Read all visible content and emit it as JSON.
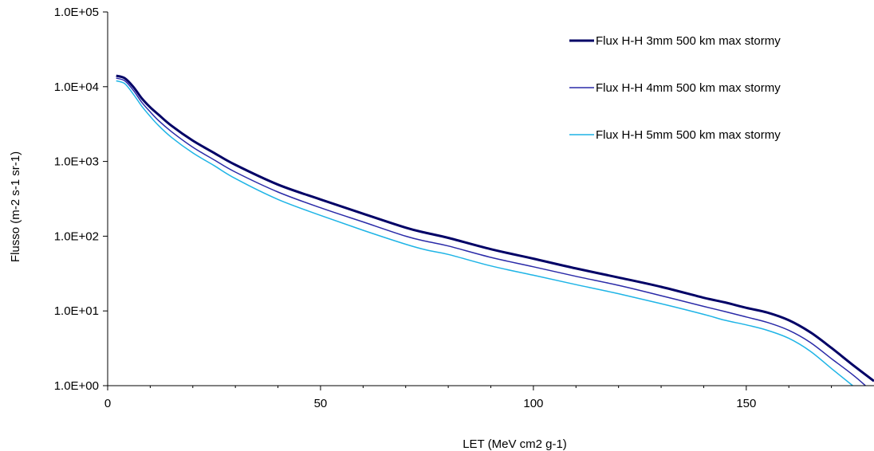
{
  "chart_data": {
    "type": "line",
    "title": "",
    "xlabel": "LET (MeV cm2 g-1)",
    "ylabel": "Flusso (m-2 s-1 sr-1)",
    "xlim": [
      0,
      180
    ],
    "ylim": [
      1,
      100000
    ],
    "yscale": "log",
    "grid": false,
    "legend_position": "top-right",
    "x_ticks": [
      {
        "value": 0,
        "label": "0"
      },
      {
        "value": 50,
        "label": "50"
      },
      {
        "value": 100,
        "label": "100"
      },
      {
        "value": 150,
        "label": "150"
      }
    ],
    "y_ticks": [
      {
        "value": 1,
        "label": "1.0E+00"
      },
      {
        "value": 10,
        "label": "1.0E+01"
      },
      {
        "value": 100,
        "label": "1.0E+02"
      },
      {
        "value": 1000,
        "label": "1.0E+03"
      },
      {
        "value": 10000,
        "label": "1.0E+04"
      },
      {
        "value": 100000,
        "label": "1.0E+05"
      }
    ],
    "series": [
      {
        "name": "Flux H-H 3mm 500 km max stormy",
        "color": "#000066",
        "x": [
          2,
          4,
          6,
          8,
          10,
          12,
          15,
          20,
          25,
          30,
          40,
          50,
          60,
          70,
          75,
          80,
          90,
          100,
          110,
          120,
          130,
          140,
          145,
          150,
          155,
          160,
          165,
          170,
          175,
          180
        ],
        "y": [
          14000,
          13000,
          10000,
          7000,
          5300,
          4200,
          3000,
          1900,
          1300,
          900,
          490,
          310,
          200,
          130,
          110,
          95,
          67,
          50,
          37,
          28,
          21,
          15,
          13,
          11,
          9.5,
          7.5,
          5.2,
          3.2,
          1.9,
          1.15
        ]
      },
      {
        "name": "Flux H-H 4mm 500 km max stormy",
        "color": "#2a2aa8",
        "x": [
          2,
          4,
          6,
          8,
          10,
          12,
          15,
          20,
          25,
          30,
          40,
          50,
          60,
          70,
          75,
          80,
          90,
          100,
          110,
          120,
          130,
          140,
          145,
          150,
          155,
          160,
          165,
          170,
          175,
          178
        ],
        "y": [
          13000,
          12000,
          9000,
          6200,
          4600,
          3500,
          2500,
          1550,
          1050,
          720,
          390,
          240,
          155,
          100,
          85,
          74,
          52,
          39,
          29,
          22,
          16,
          11.5,
          9.8,
          8.3,
          7,
          5.5,
          3.8,
          2.3,
          1.4,
          1
        ]
      },
      {
        "name": "Flux H-H 5mm 500 km max stormy",
        "color": "#1eb4e6",
        "x": [
          2,
          4,
          6,
          8,
          10,
          12,
          15,
          20,
          25,
          30,
          40,
          50,
          60,
          70,
          75,
          80,
          90,
          100,
          110,
          120,
          130,
          140,
          145,
          150,
          155,
          160,
          165,
          170,
          175
        ],
        "y": [
          12000,
          11000,
          8000,
          5500,
          4000,
          3000,
          2100,
          1300,
          880,
          590,
          310,
          190,
          120,
          78,
          65,
          57,
          40,
          30,
          22.5,
          17,
          12.5,
          9,
          7.5,
          6.5,
          5.5,
          4.3,
          2.9,
          1.7,
          1
        ]
      }
    ]
  }
}
